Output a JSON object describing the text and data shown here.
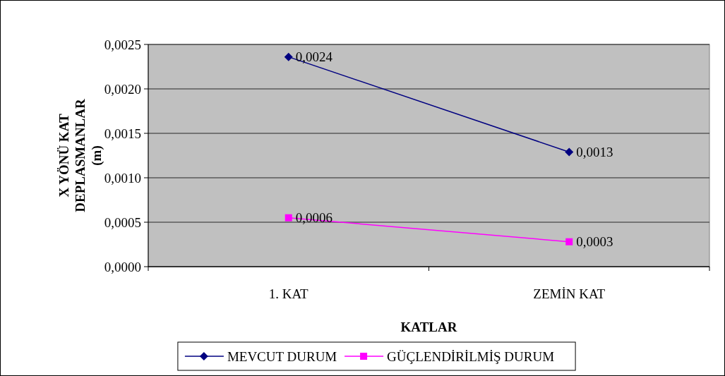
{
  "chart_data": {
    "type": "line",
    "xlabel": "KATLAR",
    "ylabel": "X YÖNÜ KAT DEPLASMANLAR (m)",
    "categories": [
      "1. KAT",
      "ZEMİN KAT"
    ],
    "series": [
      {
        "name": "MEVCUT DURUM",
        "color": "#000080",
        "marker": "diamond",
        "values": [
          0.00236,
          0.00129
        ],
        "value_labels": [
          "0,0024",
          "0,0013"
        ]
      },
      {
        "name": "GÜÇLENDİRİLMİŞ DURUM",
        "color": "#ff00ff",
        "marker": "square",
        "values": [
          0.00055,
          0.00028
        ],
        "value_labels": [
          "0,0006",
          "0,0003"
        ]
      }
    ],
    "ylim": [
      0,
      0.0025
    ],
    "yticks": [
      {
        "value": 0,
        "label": "0,0000"
      },
      {
        "value": 0.0005,
        "label": "0,0005"
      },
      {
        "value": 0.001,
        "label": "0,0010"
      },
      {
        "value": 0.0015,
        "label": "0,0015"
      },
      {
        "value": 0.002,
        "label": "0,0020"
      },
      {
        "value": 0.0025,
        "label": "0,0025"
      }
    ],
    "grid": "y",
    "legend": "bottom",
    "line_style": "solid"
  }
}
